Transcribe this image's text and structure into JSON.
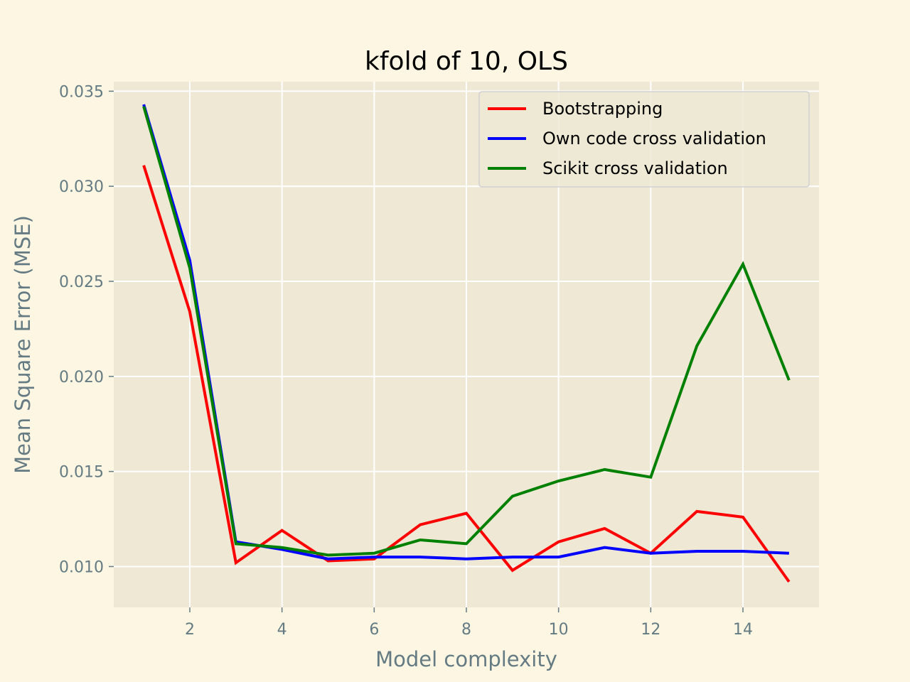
{
  "chart_data": {
    "type": "line",
    "title": "kfold of 10, OLS",
    "xlabel": "Model complexity",
    "ylabel": "Mean Square Error (MSE)",
    "xlim": [
      0.35,
      15.65
    ],
    "ylim": [
      0.00785,
      0.0355
    ],
    "xticks": [
      2,
      4,
      6,
      8,
      10,
      12,
      14
    ],
    "yticks": [
      0.01,
      0.015,
      0.02,
      0.025,
      0.03,
      0.035
    ],
    "ytick_labels": [
      "0.010",
      "0.015",
      "0.020",
      "0.025",
      "0.030",
      "0.035"
    ],
    "grid": true,
    "legend_position": "upper right",
    "x": [
      1,
      2,
      3,
      4,
      5,
      6,
      7,
      8,
      9,
      10,
      11,
      12,
      13,
      14,
      15
    ],
    "series": [
      {
        "name": "Bootstrapping",
        "color": "#ff0000",
        "values": [
          0.0311,
          0.0234,
          0.0102,
          0.0119,
          0.0103,
          0.0104,
          0.0122,
          0.0128,
          0.0098,
          0.0113,
          0.012,
          0.0107,
          0.0129,
          0.0126,
          0.0092
        ]
      },
      {
        "name": "Own code cross validation",
        "color": "#0000ff",
        "values": [
          0.0343,
          0.0261,
          0.0113,
          0.0109,
          0.0104,
          0.0105,
          0.0105,
          0.0104,
          0.0105,
          0.0105,
          0.011,
          0.0107,
          0.0108,
          0.0108,
          0.0107
        ]
      },
      {
        "name": "Scikit cross validation",
        "color": "#008000",
        "values": [
          0.0342,
          0.0257,
          0.0112,
          0.011,
          0.0106,
          0.0107,
          0.0114,
          0.0112,
          0.0137,
          0.0145,
          0.0151,
          0.0147,
          0.0216,
          0.0259,
          0.0198
        ]
      }
    ]
  },
  "colors": {
    "figure_background": "#fdf6e3",
    "axes_background": "#eee8d5",
    "grid": "#ffffff",
    "tick_text": "#657b83"
  }
}
